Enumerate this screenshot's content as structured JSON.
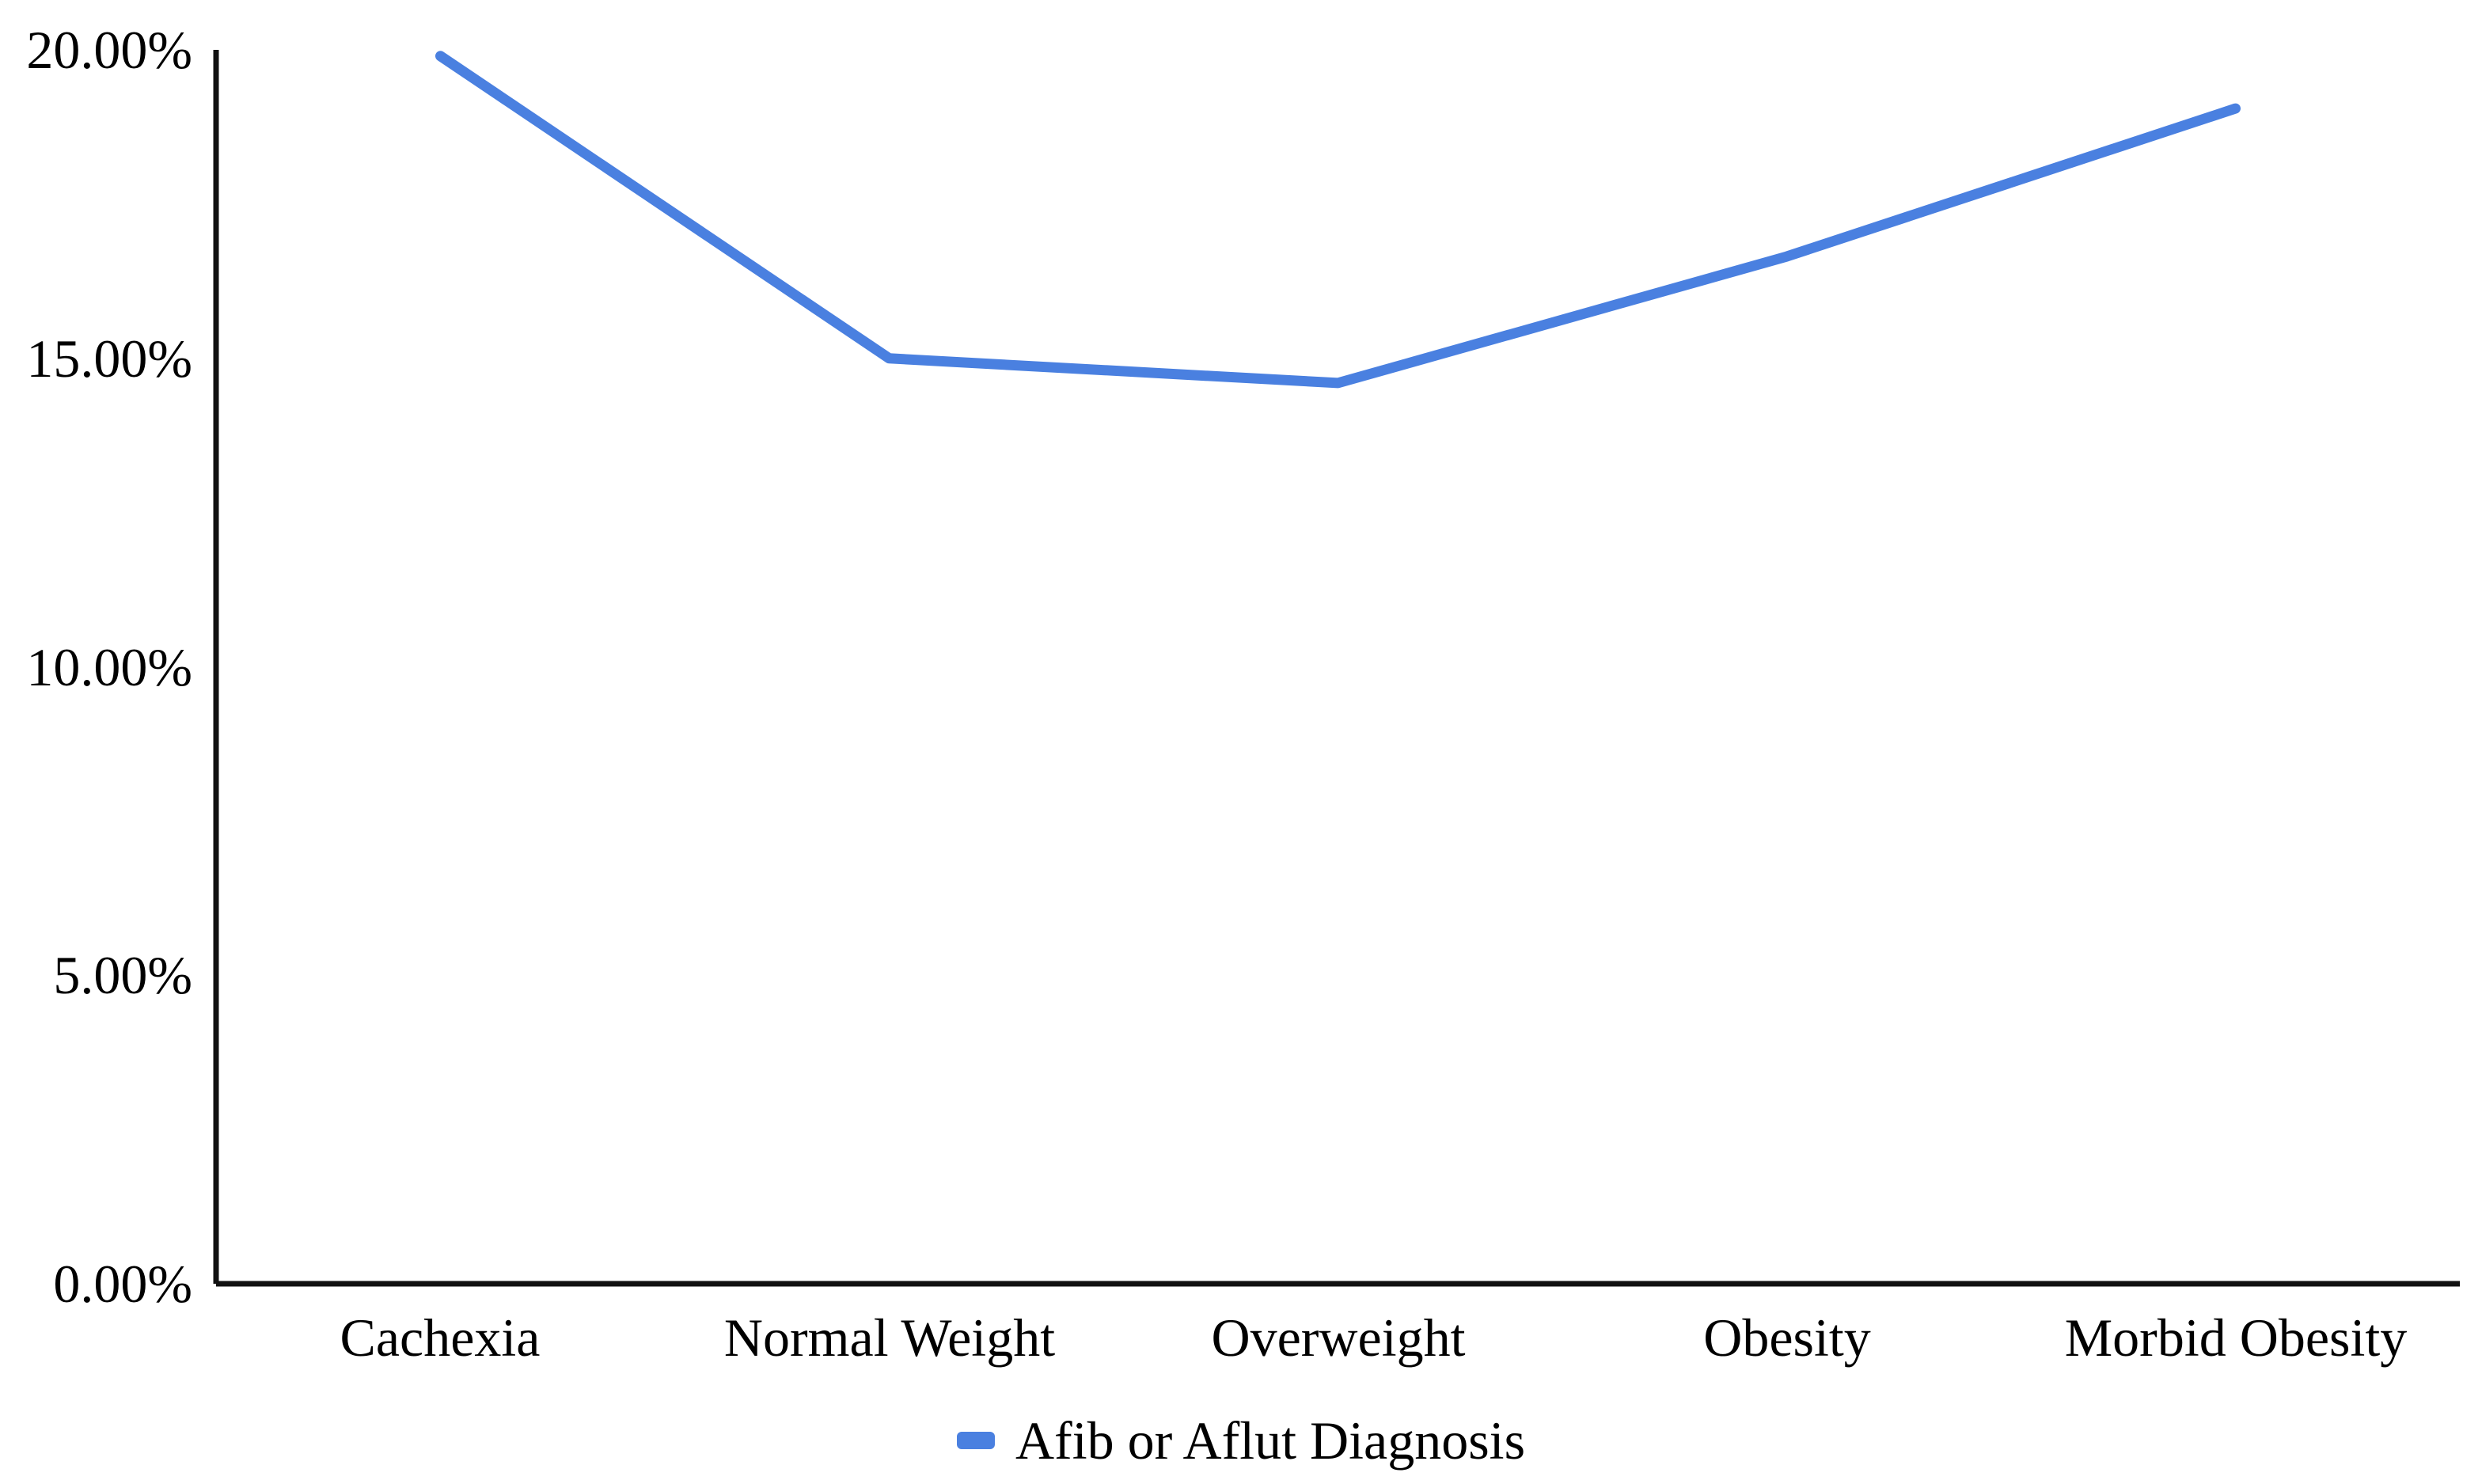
{
  "chart_data": {
    "type": "line",
    "title": "",
    "xlabel": "",
    "ylabel": "",
    "categories": [
      "Cachexia",
      "Normal Weight",
      "Overweight",
      "Obesity",
      "Morbid Obesity"
    ],
    "series": [
      {
        "name": "Afib or Aflut Diagnosis",
        "values": [
          19.9,
          15.0,
          14.6,
          16.65,
          19.05
        ],
        "color": "#4a80e0"
      }
    ],
    "ylim": [
      0,
      20
    ],
    "yticks": [
      20,
      15,
      10,
      5,
      0
    ],
    "ytick_labels": [
      "20.00%",
      "15.00%",
      "10.00%",
      "5.00%",
      "0.00%"
    ],
    "value_format": "percent",
    "grid": false,
    "markers": false,
    "legend_position": "bottom-center",
    "axis_color": "#111111",
    "background_color": "#ffffff"
  }
}
